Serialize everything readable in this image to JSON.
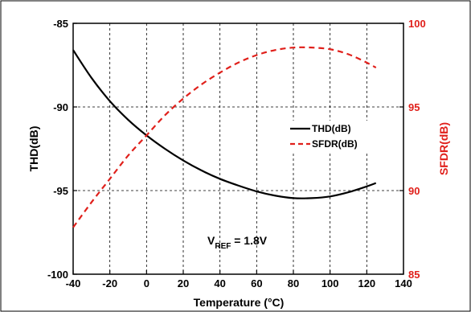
{
  "chart_data": {
    "type": "line",
    "xlabel": "Temperature (°C)",
    "ylabel_left": "THD(dB)",
    "ylabel_right": "SFDR(dB)",
    "xlim": [
      -40,
      140
    ],
    "ylim_left": [
      -100,
      -85
    ],
    "ylim_right": [
      85,
      100
    ],
    "x_ticks": [
      "-40",
      "-20",
      "0",
      "20",
      "40",
      "60",
      "80",
      "100",
      "120",
      "140"
    ],
    "y_ticks_left": [
      "-85",
      "-90",
      "-95",
      "-100"
    ],
    "y_ticks_right": [
      "100",
      "95",
      "90",
      "85"
    ],
    "grid": true,
    "legend_position": "right",
    "annotation": {
      "main": "V",
      "sub": "REF",
      "tail": " = 1.8V"
    },
    "series": [
      {
        "name": "THD(dB)",
        "axis": "left",
        "color": "#000000",
        "dash": "solid",
        "x": [
          -40,
          -30,
          -20,
          -10,
          0,
          10,
          20,
          30,
          40,
          50,
          60,
          70,
          80,
          90,
          100,
          110,
          120,
          125
        ],
        "y": [
          -86.6,
          -88.26,
          -89.65,
          -90.77,
          -91.7,
          -92.5,
          -93.2,
          -93.8,
          -94.3,
          -94.7,
          -95.05,
          -95.3,
          -95.45,
          -95.45,
          -95.35,
          -95.1,
          -94.75,
          -94.55
        ]
      },
      {
        "name": "SFDR(dB)",
        "axis": "right",
        "color": "#e0201b",
        "dash": "dashed",
        "x": [
          -40,
          -30,
          -20,
          -10,
          0,
          10,
          20,
          30,
          40,
          50,
          60,
          70,
          80,
          90,
          100,
          110,
          120,
          125
        ],
        "y": [
          87.8,
          89.3,
          90.7,
          92.1,
          93.3,
          94.5,
          95.5,
          96.35,
          97.05,
          97.65,
          98.1,
          98.4,
          98.55,
          98.55,
          98.45,
          98.15,
          97.65,
          97.35
        ]
      }
    ]
  }
}
